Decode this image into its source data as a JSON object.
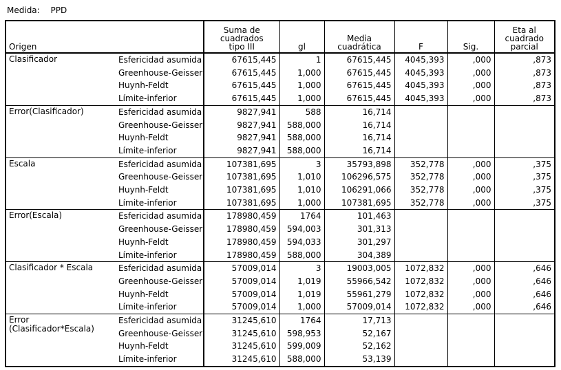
{
  "measure": {
    "label": "Medida:",
    "value": "PPD"
  },
  "headers": {
    "origen": "Origen",
    "ss": [
      "Suma de",
      "cuadrados",
      "tipo III"
    ],
    "gl": "gl",
    "ms": [
      "Media",
      "cuadrática"
    ],
    "f": "F",
    "sig": "Sig.",
    "eta": [
      "Eta al",
      "cuadrado",
      "parcial"
    ]
  },
  "groups": [
    {
      "source": [
        "Clasificador"
      ],
      "rows": [
        {
          "corr": "Esfericidad asumida",
          "ss": "67615,445",
          "gl": "1",
          "ms": "67615,445",
          "f": "4045,393",
          "sig": ",000",
          "eta": ",873"
        },
        {
          "corr": "Greenhouse-Geisser",
          "ss": "67615,445",
          "gl": "1,000",
          "ms": "67615,445",
          "f": "4045,393",
          "sig": ",000",
          "eta": ",873"
        },
        {
          "corr": "Huynh-Feldt",
          "ss": "67615,445",
          "gl": "1,000",
          "ms": "67615,445",
          "f": "4045,393",
          "sig": ",000",
          "eta": ",873"
        },
        {
          "corr": "Límite-inferior",
          "ss": "67615,445",
          "gl": "1,000",
          "ms": "67615,445",
          "f": "4045,393",
          "sig": ",000",
          "eta": ",873"
        }
      ]
    },
    {
      "source": [
        "Error(Clasificador)"
      ],
      "rows": [
        {
          "corr": "Esfericidad asumida",
          "ss": "9827,941",
          "gl": "588",
          "ms": "16,714",
          "f": "",
          "sig": "",
          "eta": ""
        },
        {
          "corr": "Greenhouse-Geisser",
          "ss": "9827,941",
          "gl": "588,000",
          "ms": "16,714",
          "f": "",
          "sig": "",
          "eta": ""
        },
        {
          "corr": "Huynh-Feldt",
          "ss": "9827,941",
          "gl": "588,000",
          "ms": "16,714",
          "f": "",
          "sig": "",
          "eta": ""
        },
        {
          "corr": "Límite-inferior",
          "ss": "9827,941",
          "gl": "588,000",
          "ms": "16,714",
          "f": "",
          "sig": "",
          "eta": ""
        }
      ]
    },
    {
      "source": [
        "Escala"
      ],
      "rows": [
        {
          "corr": "Esfericidad asumida",
          "ss": "107381,695",
          "gl": "3",
          "ms": "35793,898",
          "f": "352,778",
          "sig": ",000",
          "eta": ",375"
        },
        {
          "corr": "Greenhouse-Geisser",
          "ss": "107381,695",
          "gl": "1,010",
          "ms": "106296,575",
          "f": "352,778",
          "sig": ",000",
          "eta": ",375"
        },
        {
          "corr": "Huynh-Feldt",
          "ss": "107381,695",
          "gl": "1,010",
          "ms": "106291,066",
          "f": "352,778",
          "sig": ",000",
          "eta": ",375"
        },
        {
          "corr": "Límite-inferior",
          "ss": "107381,695",
          "gl": "1,000",
          "ms": "107381,695",
          "f": "352,778",
          "sig": ",000",
          "eta": ",375"
        }
      ]
    },
    {
      "source": [
        "Error(Escala)"
      ],
      "rows": [
        {
          "corr": "Esfericidad asumida",
          "ss": "178980,459",
          "gl": "1764",
          "ms": "101,463",
          "f": "",
          "sig": "",
          "eta": ""
        },
        {
          "corr": "Greenhouse-Geisser",
          "ss": "178980,459",
          "gl": "594,003",
          "ms": "301,313",
          "f": "",
          "sig": "",
          "eta": ""
        },
        {
          "corr": "Huynh-Feldt",
          "ss": "178980,459",
          "gl": "594,033",
          "ms": "301,297",
          "f": "",
          "sig": "",
          "eta": ""
        },
        {
          "corr": "Límite-inferior",
          "ss": "178980,459",
          "gl": "588,000",
          "ms": "304,389",
          "f": "",
          "sig": "",
          "eta": ""
        }
      ]
    },
    {
      "source": [
        "Clasificador * Escala"
      ],
      "rows": [
        {
          "corr": "Esfericidad asumida",
          "ss": "57009,014",
          "gl": "3",
          "ms": "19003,005",
          "f": "1072,832",
          "sig": ",000",
          "eta": ",646"
        },
        {
          "corr": "Greenhouse-Geisser",
          "ss": "57009,014",
          "gl": "1,019",
          "ms": "55966,542",
          "f": "1072,832",
          "sig": ",000",
          "eta": ",646"
        },
        {
          "corr": "Huynh-Feldt",
          "ss": "57009,014",
          "gl": "1,019",
          "ms": "55961,279",
          "f": "1072,832",
          "sig": ",000",
          "eta": ",646"
        },
        {
          "corr": "Límite-inferior",
          "ss": "57009,014",
          "gl": "1,000",
          "ms": "57009,014",
          "f": "1072,832",
          "sig": ",000",
          "eta": ",646"
        }
      ]
    },
    {
      "source": [
        "Error",
        "(Clasificador*Escala)"
      ],
      "rows": [
        {
          "corr": "Esfericidad asumida",
          "ss": "31245,610",
          "gl": "1764",
          "ms": "17,713",
          "f": "",
          "sig": "",
          "eta": ""
        },
        {
          "corr": "Greenhouse-Geisser",
          "ss": "31245,610",
          "gl": "598,953",
          "ms": "52,167",
          "f": "",
          "sig": "",
          "eta": ""
        },
        {
          "corr": "Huynh-Feldt",
          "ss": "31245,610",
          "gl": "599,009",
          "ms": "52,162",
          "f": "",
          "sig": "",
          "eta": ""
        },
        {
          "corr": "Límite-inferior",
          "ss": "31245,610",
          "gl": "588,000",
          "ms": "53,139",
          "f": "",
          "sig": "",
          "eta": ""
        }
      ]
    }
  ]
}
